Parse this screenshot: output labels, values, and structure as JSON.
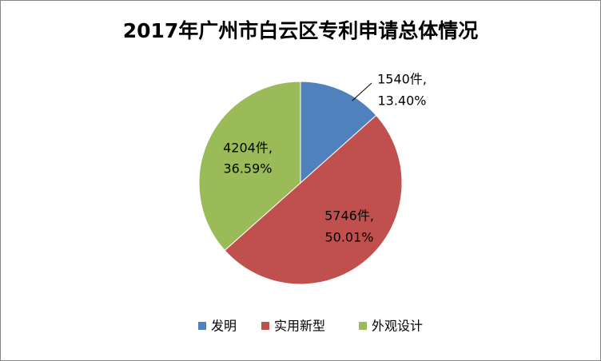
{
  "chart_data": {
    "type": "pie",
    "title": "2017年广州市白云区专利申请总体情况",
    "categories": [
      "发明",
      "实用新型",
      "外观设计"
    ],
    "values": [
      1540,
      5746,
      4204
    ],
    "value_labels": [
      "1540件,",
      "5746件,",
      "4204件,"
    ],
    "percents": [
      13.4,
      50.01,
      36.59
    ],
    "percent_labels": [
      "13.40%",
      "50.01%",
      "36.59%"
    ],
    "colors": [
      "#4f81bd",
      "#c0504d",
      "#9bbb59"
    ],
    "legend": "bottom"
  }
}
